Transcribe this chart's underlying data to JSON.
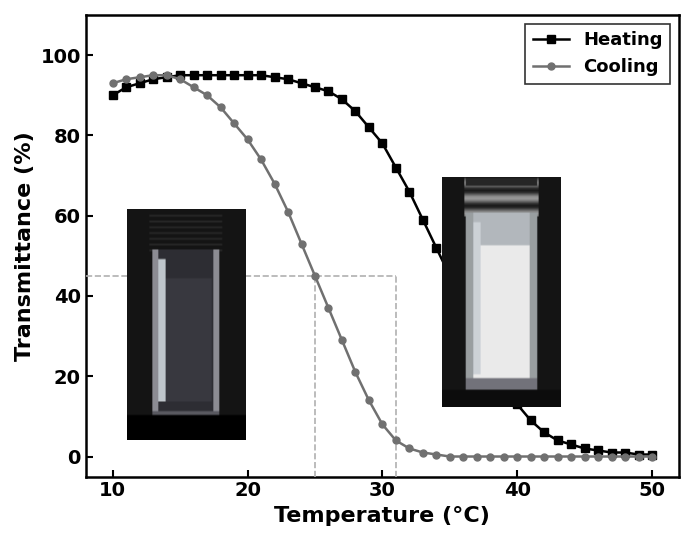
{
  "title": "",
  "xlabel": "Temperature (°C)",
  "ylabel": "Transmittance (%)",
  "xlim": [
    8,
    52
  ],
  "ylim": [
    -5,
    110
  ],
  "xticks": [
    10,
    20,
    30,
    40,
    50
  ],
  "yticks": [
    0,
    20,
    40,
    60,
    80,
    100
  ],
  "heating_color": "#000000",
  "cooling_color": "#707070",
  "dashed_line_color": "#b0b0b0",
  "dashed_y": 45,
  "dashed_x1": 25,
  "dashed_x2": 31,
  "heating_temp": [
    10,
    11,
    12,
    13,
    14,
    15,
    16,
    17,
    18,
    19,
    20,
    21,
    22,
    23,
    24,
    25,
    26,
    27,
    28,
    29,
    30,
    31,
    32,
    33,
    34,
    35,
    36,
    37,
    38,
    39,
    40,
    41,
    42,
    43,
    44,
    45,
    46,
    47,
    48,
    49,
    50
  ],
  "heating_trans": [
    90,
    92,
    93,
    94,
    94.5,
    95,
    95,
    95,
    95,
    95,
    95,
    95,
    94.5,
    94,
    93,
    92,
    91,
    89,
    86,
    82,
    78,
    72,
    66,
    59,
    52,
    45,
    38,
    31,
    24,
    18,
    13,
    9,
    6,
    4,
    3,
    2,
    1.5,
    1,
    1,
    0.5,
    0.5
  ],
  "cooling_temp": [
    10,
    11,
    12,
    13,
    14,
    15,
    16,
    17,
    18,
    19,
    20,
    21,
    22,
    23,
    24,
    25,
    26,
    27,
    28,
    29,
    30,
    31,
    32,
    33,
    34,
    35,
    36,
    37,
    38,
    39,
    40,
    41,
    42,
    43,
    44,
    45,
    46,
    47,
    48,
    49,
    50
  ],
  "cooling_trans": [
    93,
    94,
    94.5,
    95,
    95,
    94,
    92,
    90,
    87,
    83,
    79,
    74,
    68,
    61,
    53,
    45,
    37,
    29,
    21,
    14,
    8,
    4,
    2,
    1,
    0.5,
    0,
    0,
    0,
    0,
    0,
    0,
    0,
    0,
    0,
    0,
    0,
    0,
    0,
    0,
    0,
    0
  ],
  "legend_heating": "Heating",
  "legend_cooling": "Cooling",
  "xlabel_fontsize": 16,
  "ylabel_fontsize": 16,
  "tick_fontsize": 14,
  "legend_fontsize": 13
}
